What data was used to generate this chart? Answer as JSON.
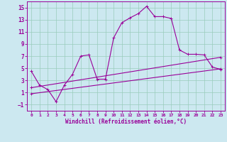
{
  "xlabel": "Windchill (Refroidissement éolien,°C)",
  "xlim": [
    -0.5,
    23.5
  ],
  "ylim": [
    -2.0,
    16.0
  ],
  "yticks": [
    -1,
    1,
    3,
    5,
    7,
    9,
    11,
    13,
    15
  ],
  "xticks": [
    0,
    1,
    2,
    3,
    4,
    5,
    6,
    7,
    8,
    9,
    10,
    11,
    12,
    13,
    14,
    15,
    16,
    17,
    18,
    19,
    20,
    21,
    22,
    23
  ],
  "bg_color": "#cce8f0",
  "line_color": "#990099",
  "grid_color": "#99ccbb",
  "series1_x": [
    0,
    1,
    2,
    3,
    4,
    5,
    6,
    7,
    8,
    9,
    10,
    11,
    12,
    13,
    14,
    15,
    16,
    17,
    18,
    19,
    20,
    21,
    22,
    23
  ],
  "series1_y": [
    4.5,
    2.2,
    1.5,
    -0.5,
    2.2,
    4.0,
    7.0,
    7.2,
    3.2,
    3.2,
    10.0,
    12.5,
    13.3,
    14.0,
    15.2,
    13.5,
    13.5,
    13.2,
    8.0,
    7.3,
    7.3,
    7.2,
    5.2,
    4.8
  ],
  "series2_x": [
    0,
    23
  ],
  "series2_y": [
    1.8,
    6.8
  ],
  "series3_x": [
    0,
    23
  ],
  "series3_y": [
    0.8,
    4.9
  ],
  "tick_fontsize": 5.0,
  "xlabel_fontsize": 5.5
}
